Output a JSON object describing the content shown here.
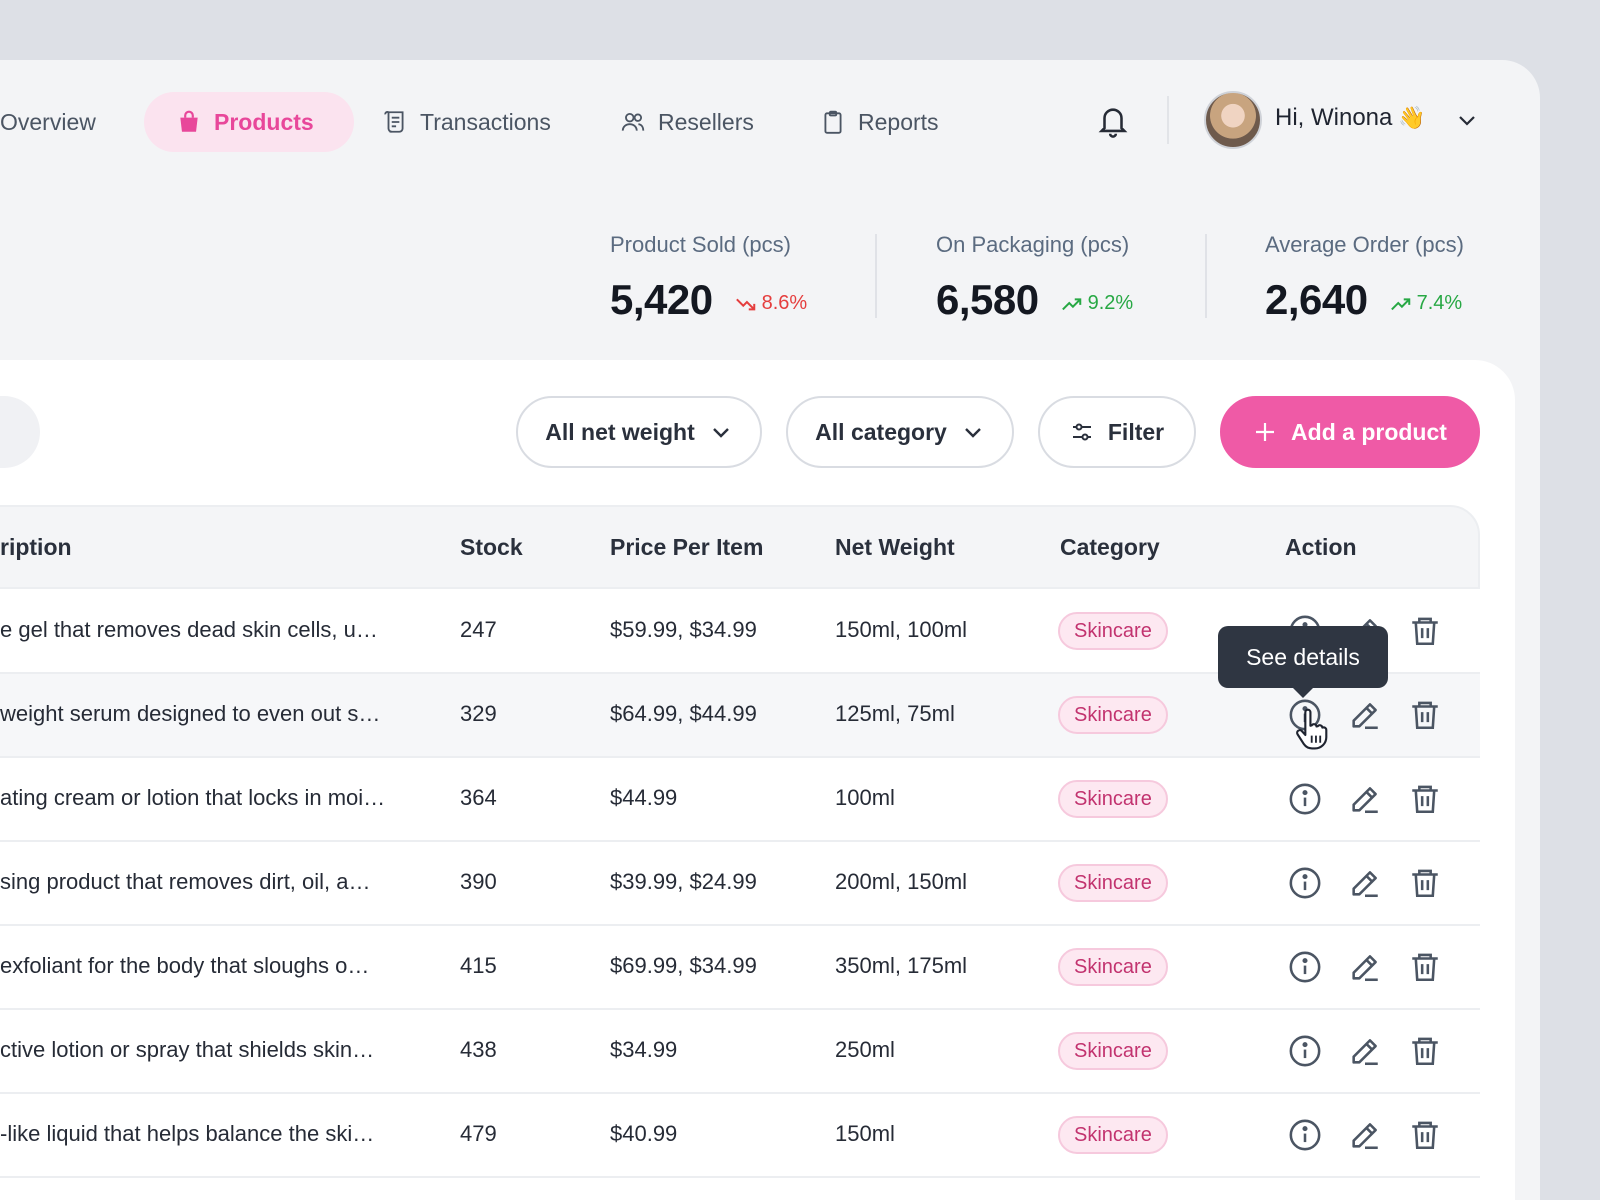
{
  "nav": {
    "items": [
      {
        "label": "Overview",
        "active": false
      },
      {
        "label": "Products",
        "active": true
      },
      {
        "label": "Transactions",
        "active": false
      },
      {
        "label": "Resellers",
        "active": false
      },
      {
        "label": "Reports",
        "active": false
      }
    ],
    "greeting": "Hi, Winona",
    "greeting_emoji": "👋"
  },
  "stats": [
    {
      "label": "Product Sold (pcs)",
      "value": "5,420",
      "change": "8.6%",
      "trend": "down",
      "color": "#e53e3e"
    },
    {
      "label": "On Packaging (pcs)",
      "value": "6,580",
      "change": "9.2%",
      "trend": "up",
      "color": "#27a844"
    },
    {
      "label": "Average Order (pcs)",
      "value": "2,640",
      "change": "7.4%",
      "trend": "up",
      "color": "#27a844"
    }
  ],
  "toolbar": {
    "net_weight_filter": "All net weight",
    "category_filter": "All category",
    "filter_label": "Filter",
    "add_label": "Add a product"
  },
  "table": {
    "columns": [
      "ription",
      "Stock",
      "Price Per Item",
      "Net Weight",
      "Category",
      "Action"
    ],
    "rows": [
      {
        "description": "e gel that removes dead skin cells, u…",
        "stock": "247",
        "price": "$59.99, $34.99",
        "weight": "150ml, 100ml",
        "category": "Skincare"
      },
      {
        "description": "weight serum designed to even out s…",
        "stock": "329",
        "price": "$64.99, $44.99",
        "weight": "125ml, 75ml",
        "category": "Skincare"
      },
      {
        "description": "ating cream or lotion that locks in moi…",
        "stock": "364",
        "price": "$44.99",
        "weight": "100ml",
        "category": "Skincare"
      },
      {
        "description": "sing product that removes dirt, oil, a…",
        "stock": "390",
        "price": "$39.99, $24.99",
        "weight": "200ml, 150ml",
        "category": "Skincare"
      },
      {
        "description": " exfoliant for the body that sloughs o…",
        "stock": "415",
        "price": "$69.99, $34.99",
        "weight": "350ml, 175ml",
        "category": "Skincare"
      },
      {
        "description": "ctive lotion or spray that shields skin…",
        "stock": "438",
        "price": "$34.99",
        "weight": "250ml",
        "category": "Skincare"
      },
      {
        "description": "-like liquid that helps balance the ski…",
        "stock": "479",
        "price": "$40.99",
        "weight": "150ml",
        "category": "Skincare"
      }
    ]
  },
  "tooltip": "See details",
  "colors": {
    "accent": "#ef5aa6",
    "accent_soft": "#fbe3ef",
    "down": "#e53e3e",
    "up": "#27a844"
  }
}
